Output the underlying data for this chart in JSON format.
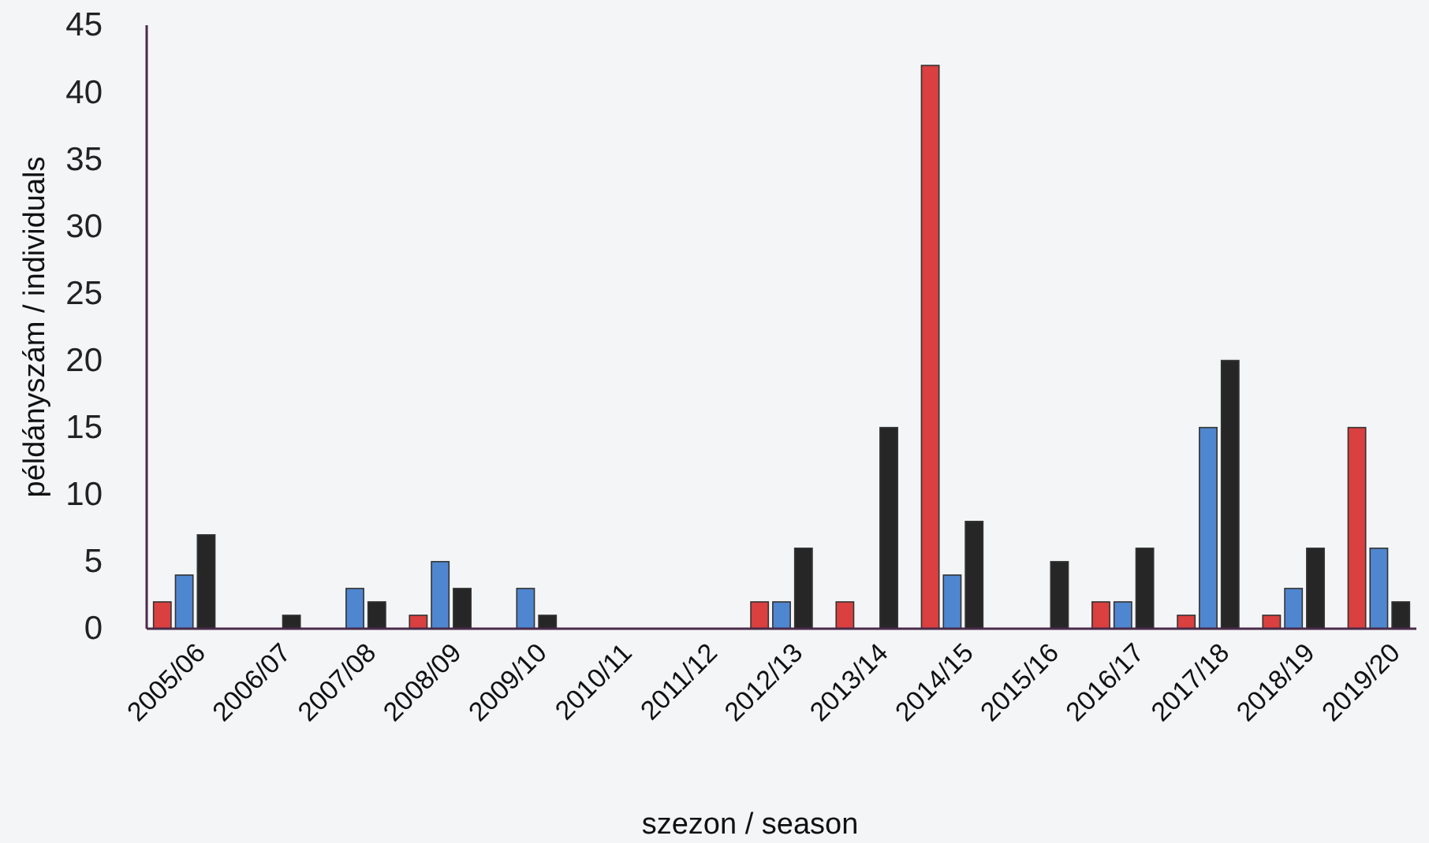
{
  "chart_data": {
    "type": "bar",
    "xlabel": "szezon / season",
    "ylabel": "példányszám / individuals",
    "categories": [
      "2005/06",
      "2006/07",
      "2007/08",
      "2008/09",
      "2009/10",
      "2010/11",
      "2011/12",
      "2012/13",
      "2013/14",
      "2014/15",
      "2015/16",
      "2016/17",
      "2017/18",
      "2018/19",
      "2019/20"
    ],
    "series": [
      {
        "color": "#d9403f",
        "values": [
          2,
          0,
          0,
          1,
          0,
          0,
          0,
          2,
          2,
          42,
          0,
          2,
          1,
          1,
          15
        ]
      },
      {
        "color": "#4f86d0",
        "values": [
          4,
          0,
          3,
          5,
          3,
          0,
          0,
          2,
          0,
          4,
          0,
          2,
          15,
          3,
          6
        ]
      },
      {
        "color": "#262626",
        "values": [
          7,
          1,
          2,
          3,
          1,
          0,
          0,
          6,
          15,
          8,
          5,
          6,
          20,
          6,
          2
        ]
      }
    ],
    "ylim": [
      0,
      45
    ],
    "yticks": [
      0,
      5,
      10,
      15,
      20,
      25,
      30,
      35,
      40,
      45
    ],
    "grid": false
  }
}
